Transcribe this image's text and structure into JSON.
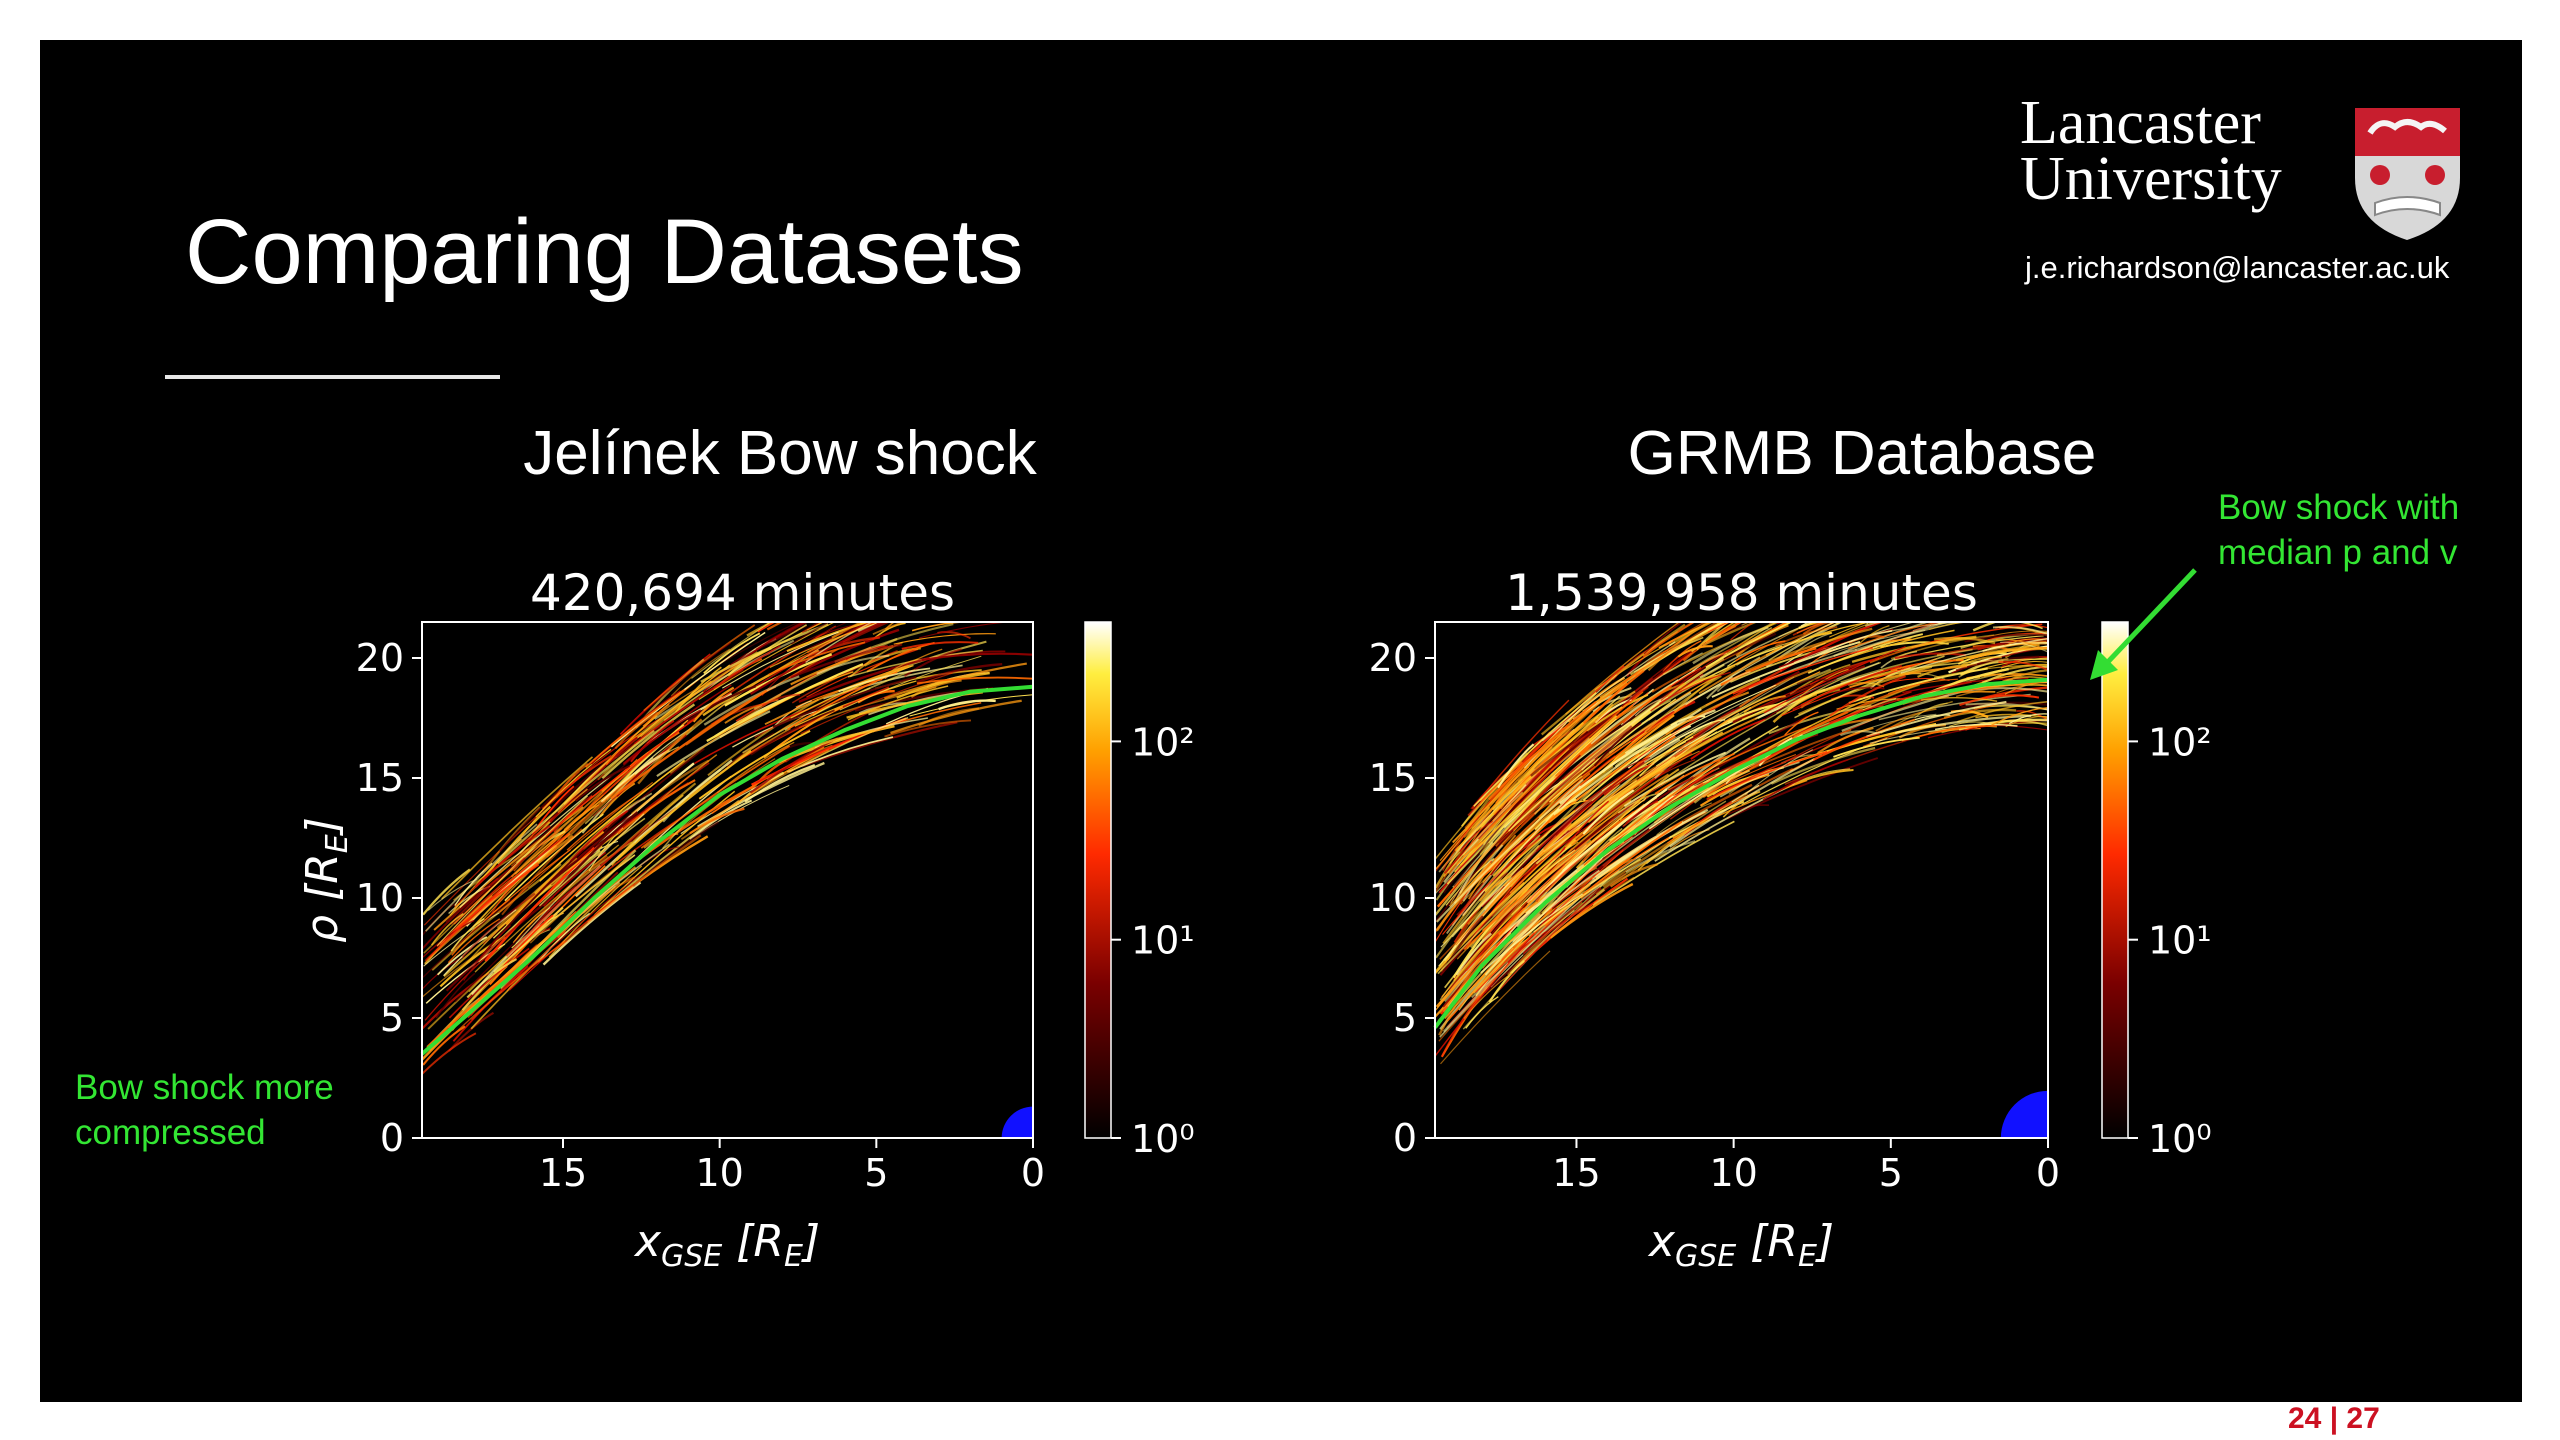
{
  "slide": {
    "title": "Comparing Datasets",
    "email": "j.e.richardson@lancaster.ac.uk",
    "logo": {
      "line1": "Lancaster",
      "line2": "University"
    },
    "page": "24 | 27"
  },
  "panels": [
    {
      "heading": "Jelínek Bow shock"
    },
    {
      "heading": "GRMB Database"
    }
  ],
  "annotations": {
    "left": [
      "Bow shock more",
      "compressed"
    ],
    "right": [
      "Bow shock with",
      "median p and v"
    ]
  },
  "colors": {
    "background": "#000000",
    "curve": "#33dd33",
    "earth": "#1111ff",
    "annotation": "#33e633",
    "accent": "#cc1122"
  },
  "chart_data": [
    {
      "type": "heatmap",
      "title": "420,694 minutes",
      "xlabel": "x_GSE [R_E]",
      "ylabel": "ρ [R_E]",
      "xlim": [
        19.5,
        0
      ],
      "ylim": [
        0,
        21.5
      ],
      "xticks": [
        15,
        10,
        5,
        0
      ],
      "yticks": [
        0,
        5,
        10,
        15,
        20
      ],
      "colorbar": {
        "scale": "log",
        "ticks": [
          "10⁰",
          "10¹",
          "10²"
        ],
        "range": [
          1,
          400
        ],
        "colormap": "hot"
      },
      "series": [
        {
          "x": [
            19.5,
            18,
            16,
            14,
            12,
            10,
            8,
            6,
            4,
            2,
            0
          ],
          "y": [
            3.5,
            5.2,
            7.5,
            10.0,
            12.3,
            14.3,
            15.8,
            17.0,
            18.0,
            18.6,
            18.8
          ]
        }
      ],
      "earth": {
        "x": 0,
        "y": 0,
        "r": 1
      }
    },
    {
      "type": "heatmap",
      "title": "1,539,958 minutes",
      "xlabel": "x_GSE [R_E]",
      "ylabel": "",
      "xlim": [
        19.5,
        0
      ],
      "ylim": [
        0,
        21.5
      ],
      "xticks": [
        15,
        10,
        5,
        0
      ],
      "yticks": [
        0,
        5,
        10,
        15,
        20
      ],
      "colorbar": {
        "scale": "log",
        "ticks": [
          "10⁰",
          "10¹",
          "10²"
        ],
        "range": [
          1,
          400
        ],
        "colormap": "hot"
      },
      "series": [
        {
          "x": [
            19.5,
            18,
            16,
            14,
            12,
            10,
            8,
            6,
            4,
            2,
            0
          ],
          "y": [
            4.6,
            7.2,
            9.8,
            12.0,
            13.8,
            15.3,
            16.6,
            17.6,
            18.4,
            18.9,
            19.1
          ]
        }
      ],
      "earth": {
        "x": 0,
        "y": 0,
        "r": 1.5
      }
    }
  ]
}
